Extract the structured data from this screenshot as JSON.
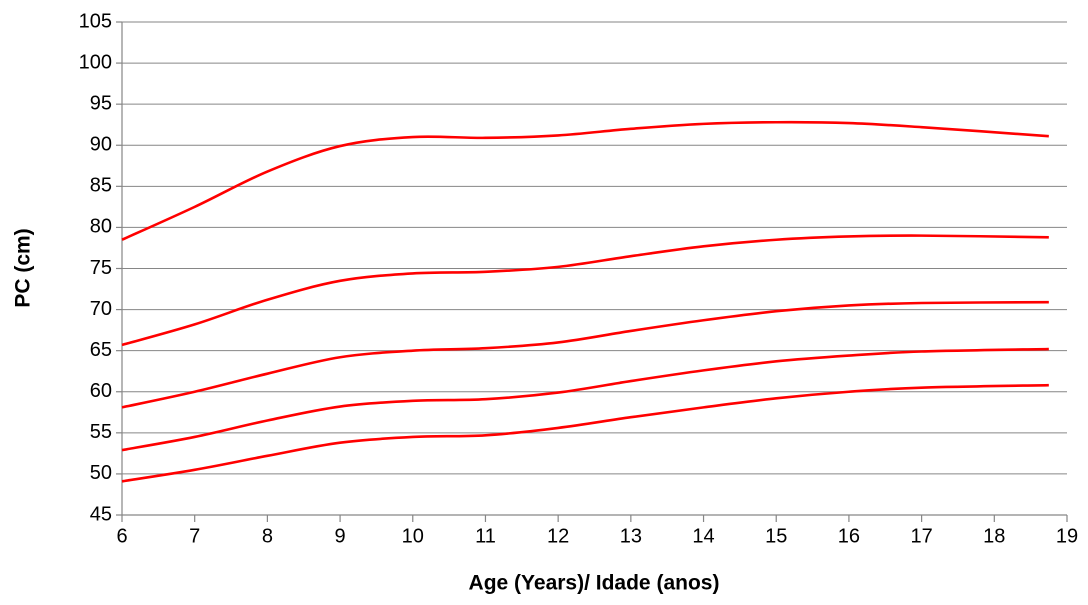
{
  "chart_data": {
    "type": "line",
    "x_label": "Age (Years)/ Idade (anos)",
    "y_label": "PC (cm)",
    "x": [
      6,
      7,
      8,
      9,
      10,
      11,
      12,
      13,
      14,
      15,
      16,
      17,
      18.75
    ],
    "series": [
      {
        "color": "#ff0000",
        "values": [
          78.5,
          82.5,
          86.8,
          89.9,
          91.0,
          90.9,
          91.2,
          92.0,
          92.6,
          92.8,
          92.7,
          92.2,
          91.1
        ]
      },
      {
        "color": "#ff0000",
        "values": [
          65.7,
          68.2,
          71.2,
          73.5,
          74.4,
          74.6,
          75.2,
          76.5,
          77.7,
          78.5,
          78.9,
          79.0,
          78.8
        ]
      },
      {
        "color": "#ff0000",
        "values": [
          58.1,
          60.0,
          62.2,
          64.2,
          65.0,
          65.3,
          66.0,
          67.4,
          68.7,
          69.8,
          70.5,
          70.8,
          70.9
        ]
      },
      {
        "color": "#ff0000",
        "values": [
          52.9,
          54.5,
          56.5,
          58.2,
          58.9,
          59.1,
          59.9,
          61.3,
          62.6,
          63.7,
          64.4,
          64.9,
          65.2
        ]
      },
      {
        "color": "#ff0000",
        "values": [
          49.1,
          50.5,
          52.2,
          53.8,
          54.5,
          54.7,
          55.6,
          56.9,
          58.1,
          59.2,
          60.0,
          60.5,
          60.8
        ]
      }
    ],
    "xlim": [
      6,
      19
    ],
    "xticks": [
      6,
      7,
      8,
      9,
      10,
      11,
      12,
      13,
      14,
      15,
      16,
      17,
      18,
      19
    ],
    "ylim": [
      45,
      105
    ],
    "yticks": [
      45,
      50,
      55,
      60,
      65,
      70,
      75,
      80,
      85,
      90,
      95,
      100,
      105
    ],
    "grid": true
  }
}
